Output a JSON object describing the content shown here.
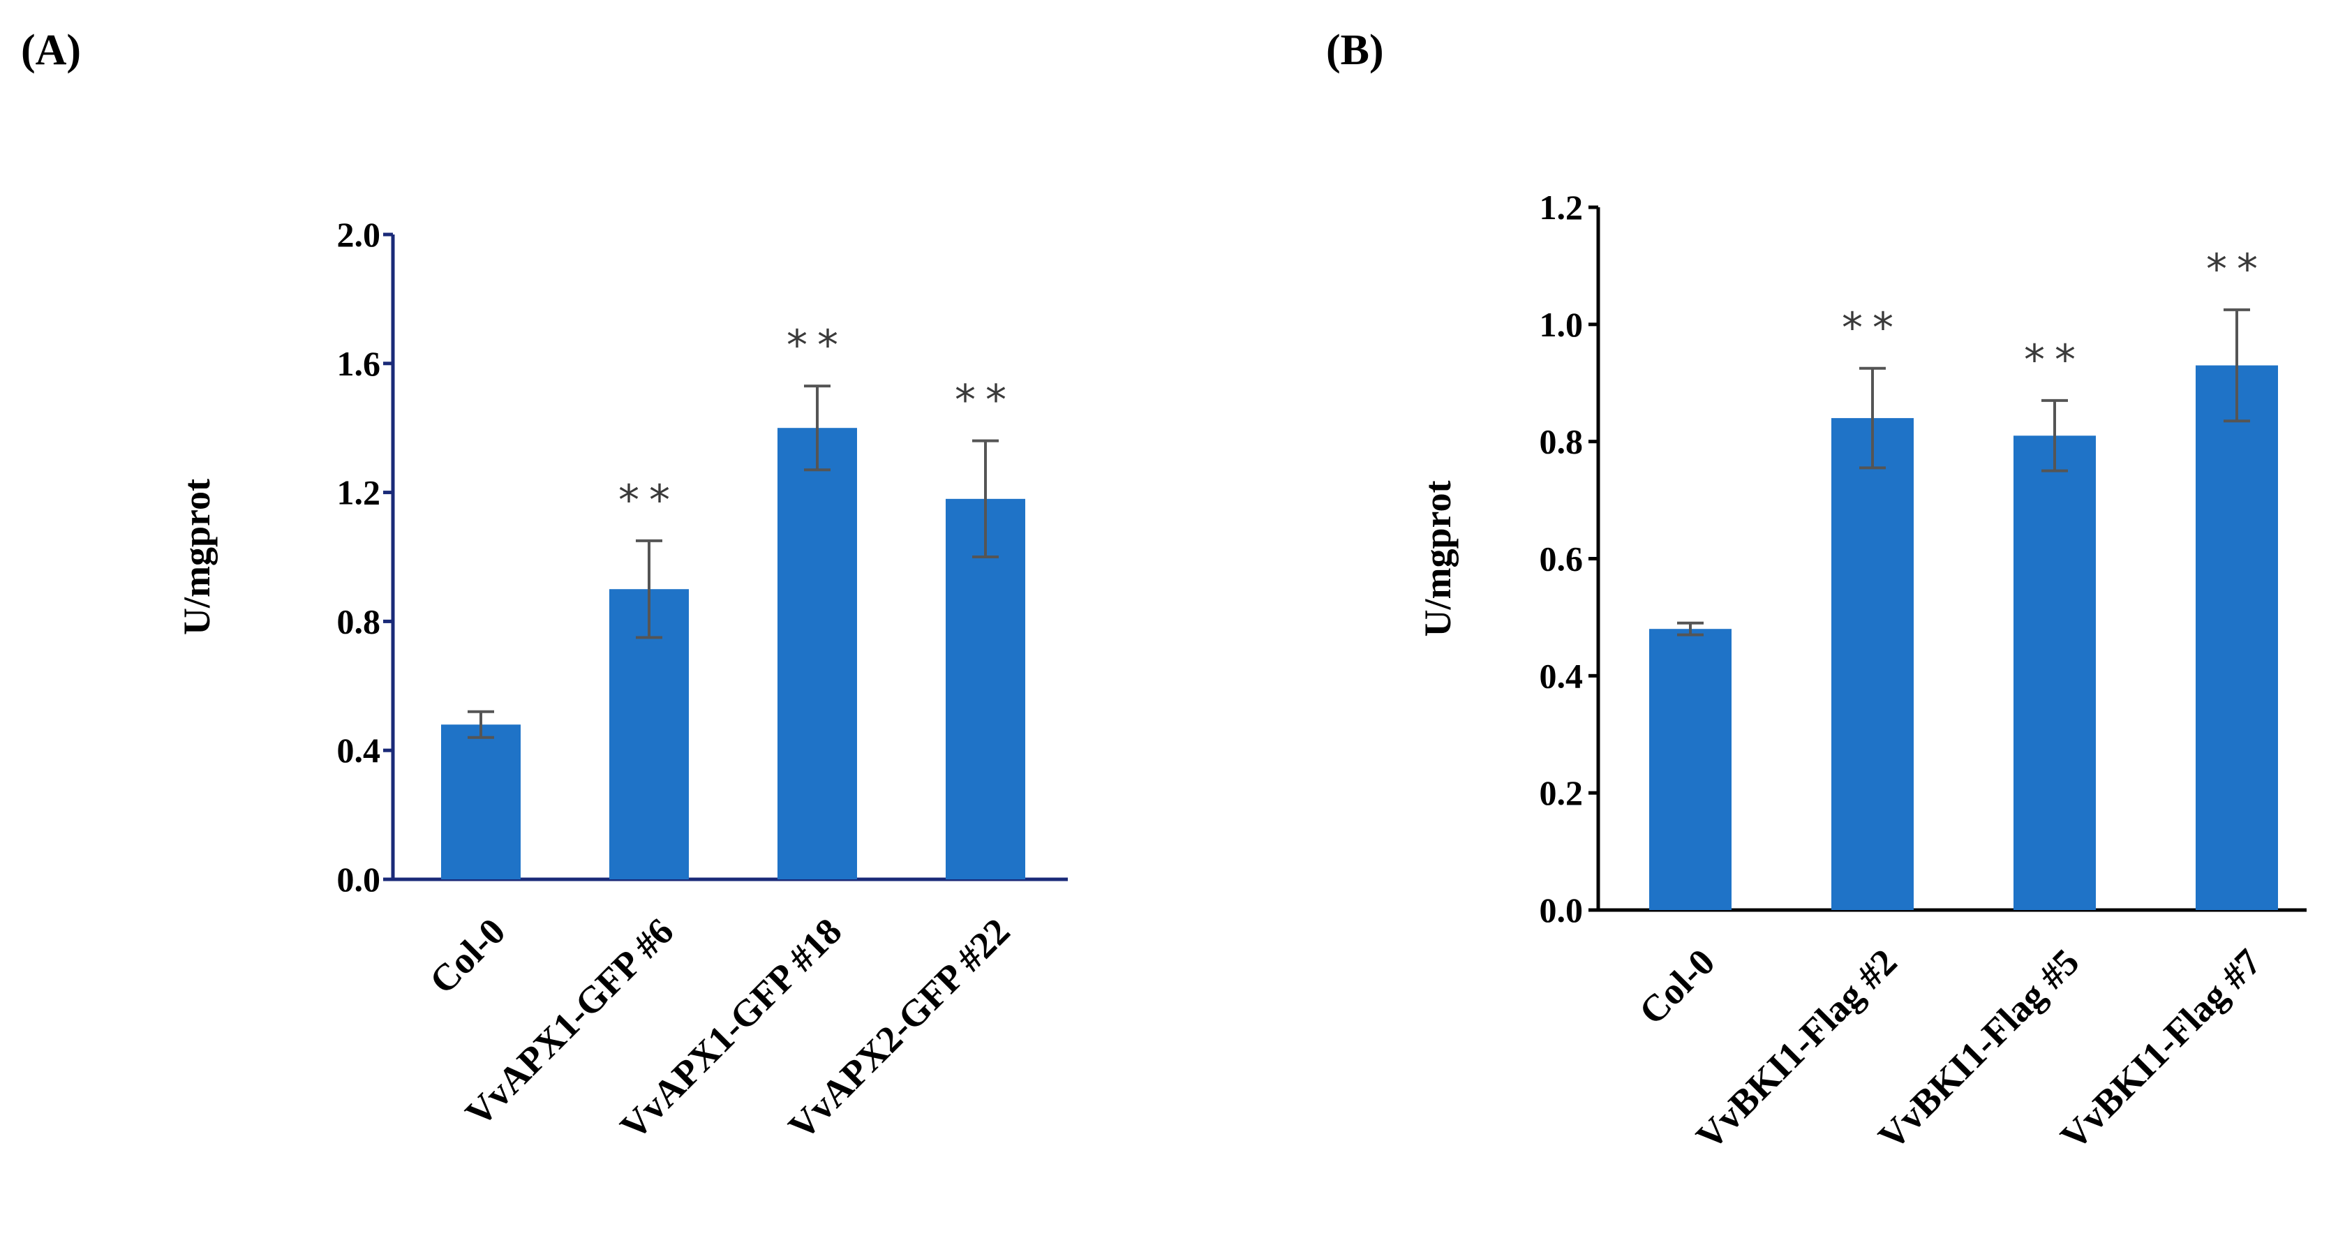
{
  "panels": [
    {
      "label": "(A)",
      "chart_data": {
        "type": "bar",
        "title": "",
        "xlabel": "",
        "ylabel": "U/mgprot",
        "ylim": [
          0,
          2.0
        ],
        "yticks": [
          "0.0",
          "0.4",
          "0.8",
          "1.2",
          "1.6",
          "2.0"
        ],
        "tick_values": [
          0,
          0.4,
          0.8,
          1.2,
          1.6,
          2.0
        ],
        "categories": [
          "Col-0",
          "VvAPX1-GFP #6",
          "VvAPX1-GFP #18",
          "VvAPX2-GFP #22"
        ],
        "values": [
          0.48,
          0.9,
          1.4,
          1.18
        ],
        "errors": [
          0.04,
          0.15,
          0.13,
          0.18
        ],
        "significance": [
          "",
          "**",
          "**",
          "**"
        ],
        "bar_color": "#1f73c7",
        "axis_color": "#1a2a78",
        "errorbar_color": "#555555"
      }
    },
    {
      "label": "(B)",
      "chart_data": {
        "type": "bar",
        "title": "",
        "xlabel": "",
        "ylabel": "U/mgprot",
        "ylim": [
          0,
          1.2
        ],
        "yticks": [
          "0.0",
          "0.2",
          "0.4",
          "0.6",
          "0.8",
          "1.0",
          "1.2"
        ],
        "tick_values": [
          0,
          0.2,
          0.4,
          0.6,
          0.8,
          1.0,
          1.2
        ],
        "categories": [
          "Col-0",
          "VvBKI1-Flag #2",
          "VvBKI1-Flag #5",
          "VvBKI1-Flag #7"
        ],
        "values": [
          0.48,
          0.84,
          0.81,
          0.93
        ],
        "errors": [
          0.01,
          0.085,
          0.06,
          0.095
        ],
        "significance": [
          "",
          "**",
          "**",
          "**"
        ],
        "bar_color": "#1f73c7",
        "axis_color": "#000000",
        "errorbar_color": "#555555"
      }
    }
  ]
}
